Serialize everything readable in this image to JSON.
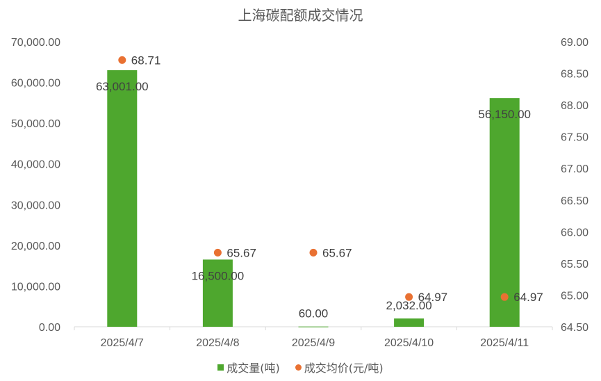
{
  "chart_data": {
    "type": "bar",
    "title": "上海碳配额成交情况",
    "categories": [
      "2025/4/7",
      "2025/4/8",
      "2025/4/9",
      "2025/4/10",
      "2025/4/11"
    ],
    "series": [
      {
        "name": "成交量(吨)",
        "type": "bar",
        "axis": "left",
        "color": "#4EA72E",
        "values": [
          63001.0,
          16500.0,
          60.0,
          2032.0,
          56150.0
        ],
        "labels": [
          "63,001.00",
          "16,500.00",
          "60.00",
          "2,032.00",
          "56,150.00"
        ]
      },
      {
        "name": "成交均价(元/吨)",
        "type": "scatter",
        "axis": "right",
        "color": "#E97132",
        "values": [
          68.71,
          65.67,
          65.67,
          64.97,
          64.97
        ],
        "labels": [
          "68.71",
          "65.67",
          "65.67",
          "64.97",
          "64.97"
        ]
      }
    ],
    "y_left": {
      "lim": [
        0,
        70000
      ],
      "ticks": [
        "0.00",
        "10,000.00",
        "20,000.00",
        "30,000.00",
        "40,000.00",
        "50,000.00",
        "60,000.00",
        "70,000.00"
      ]
    },
    "y_right": {
      "lim": [
        64.5,
        69.0
      ],
      "ticks": [
        "64.50",
        "65.00",
        "65.50",
        "66.00",
        "66.50",
        "67.00",
        "67.50",
        "68.00",
        "68.50",
        "69.00"
      ]
    },
    "grid": false,
    "legend_position": "bottom"
  }
}
